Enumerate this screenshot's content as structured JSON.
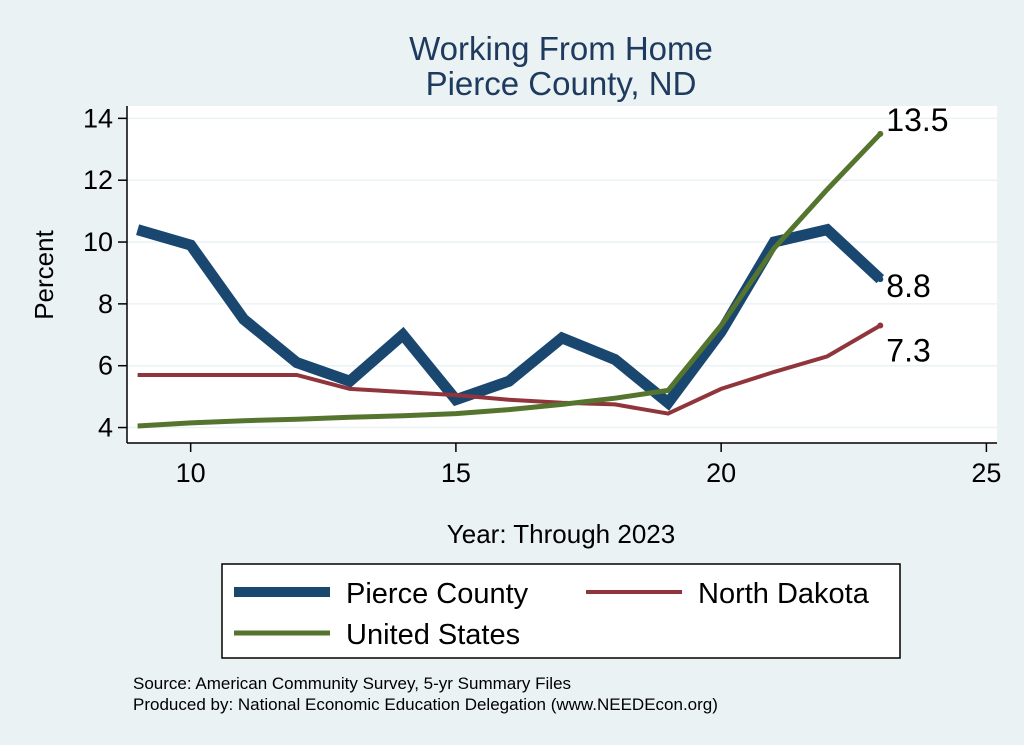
{
  "chart_data": {
    "type": "line",
    "title": "Working From Home",
    "subtitle": "Pierce County, ND",
    "xlabel": "Year: Through 2023",
    "ylabel": "Percent",
    "xlim": [
      8.8,
      25.2
    ],
    "ylim": [
      3.5,
      14.4
    ],
    "xticks": [
      10,
      15,
      20,
      25
    ],
    "yticks": [
      4,
      6,
      8,
      10,
      12,
      14
    ],
    "grid": true,
    "legend_position": "bottom",
    "x": [
      9,
      10,
      11,
      12,
      13,
      14,
      15,
      16,
      17,
      18,
      19,
      20,
      21,
      22,
      23
    ],
    "series": [
      {
        "name": "Pierce County",
        "color": "#1a476f",
        "values": [
          10.4,
          9.9,
          7.5,
          6.1,
          5.5,
          7.0,
          4.9,
          5.5,
          6.9,
          6.2,
          4.8,
          7.1,
          10.0,
          10.4,
          8.8
        ],
        "end_label": "8.8"
      },
      {
        "name": "North Dakota",
        "color": "#90353b",
        "values": [
          5.7,
          5.7,
          5.7,
          5.7,
          5.25,
          5.15,
          5.05,
          4.9,
          4.8,
          4.75,
          4.45,
          5.25,
          5.8,
          6.3,
          7.3
        ],
        "end_label": "7.3"
      },
      {
        "name": "United States",
        "color": "#55752f",
        "values": [
          4.05,
          4.15,
          4.22,
          4.27,
          4.33,
          4.38,
          4.45,
          4.58,
          4.75,
          4.95,
          5.2,
          7.3,
          9.8,
          11.7,
          13.5
        ],
        "end_label": "13.5"
      }
    ],
    "notes": [
      "Source: American Community Survey, 5-yr Summary Files",
      "Produced by: National Economic Education Delegation (www.NEEDEcon.org)"
    ]
  }
}
